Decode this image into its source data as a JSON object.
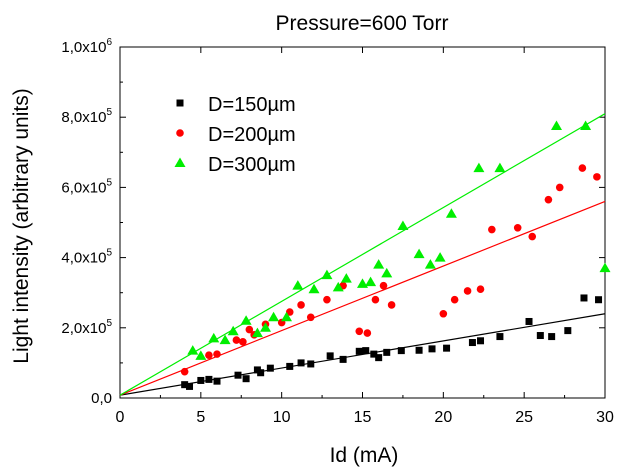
{
  "chart_data": {
    "type": "scatter",
    "title": "Pressure=600 Torr",
    "xlabel": "Id (mA)",
    "ylabel": "Light intensity (arbitrary units)",
    "xlim": [
      0,
      30
    ],
    "ylim": [
      0,
      1000000
    ],
    "x_ticks": [
      0,
      5,
      10,
      15,
      20,
      25,
      30
    ],
    "x_tick_labels": [
      "0",
      "5",
      "10",
      "15",
      "20",
      "25",
      "30"
    ],
    "y_ticks": [
      0,
      200000,
      400000,
      600000,
      800000,
      1000000
    ],
    "y_tick_labels": [
      {
        "mantissa": "0,0",
        "exponent": ""
      },
      {
        "mantissa": "2,0x10",
        "exponent": "5"
      },
      {
        "mantissa": "4,0x10",
        "exponent": "5"
      },
      {
        "mantissa": "6,0x10",
        "exponent": "5"
      },
      {
        "mantissa": "8,0x10",
        "exponent": "5"
      },
      {
        "mantissa": "1,0x10",
        "exponent": "6"
      }
    ],
    "grid": false,
    "legend_position": "top-left",
    "series": [
      {
        "name": "D=150µm",
        "color": "#000000",
        "marker": "square",
        "points": [
          [
            4.0,
            38000
          ],
          [
            4.3,
            33000
          ],
          [
            5.0,
            50000
          ],
          [
            5.5,
            53000
          ],
          [
            6.0,
            48000
          ],
          [
            7.3,
            65000
          ],
          [
            7.8,
            55000
          ],
          [
            8.5,
            80000
          ],
          [
            8.7,
            72000
          ],
          [
            9.3,
            85000
          ],
          [
            10.5,
            90000
          ],
          [
            11.2,
            100000
          ],
          [
            11.8,
            97000
          ],
          [
            13.0,
            120000
          ],
          [
            13.8,
            110000
          ],
          [
            14.8,
            133000
          ],
          [
            15.2,
            135000
          ],
          [
            15.7,
            125000
          ],
          [
            16.0,
            115000
          ],
          [
            16.5,
            130000
          ],
          [
            17.4,
            135000
          ],
          [
            18.5,
            136000
          ],
          [
            19.3,
            140000
          ],
          [
            20.2,
            142000
          ],
          [
            21.8,
            158000
          ],
          [
            22.3,
            163000
          ],
          [
            23.5,
            175000
          ],
          [
            25.3,
            218000
          ],
          [
            26.0,
            178000
          ],
          [
            26.7,
            175000
          ],
          [
            27.7,
            192000
          ],
          [
            28.7,
            285000
          ],
          [
            29.6,
            280000
          ]
        ],
        "fit": [
          [
            0,
            8000
          ],
          [
            30,
            240000
          ]
        ]
      },
      {
        "name": "D=200µm",
        "color": "#ff0000",
        "marker": "circle",
        "points": [
          [
            4.0,
            75000
          ],
          [
            5.5,
            122000
          ],
          [
            6.0,
            125000
          ],
          [
            7.2,
            165000
          ],
          [
            7.6,
            160000
          ],
          [
            8.0,
            195000
          ],
          [
            8.3,
            180000
          ],
          [
            9.0,
            210000
          ],
          [
            10.0,
            215000
          ],
          [
            10.5,
            245000
          ],
          [
            11.2,
            265000
          ],
          [
            11.8,
            230000
          ],
          [
            12.8,
            280000
          ],
          [
            13.8,
            320000
          ],
          [
            14.8,
            190000
          ],
          [
            15.3,
            185000
          ],
          [
            15.8,
            280000
          ],
          [
            16.3,
            320000
          ],
          [
            16.8,
            265000
          ],
          [
            20.0,
            240000
          ],
          [
            20.7,
            280000
          ],
          [
            21.5,
            305000
          ],
          [
            22.3,
            310000
          ],
          [
            23.0,
            480000
          ],
          [
            24.6,
            485000
          ],
          [
            25.5,
            460000
          ],
          [
            26.5,
            565000
          ],
          [
            27.2,
            600000
          ],
          [
            28.6,
            655000
          ],
          [
            29.5,
            630000
          ]
        ],
        "fit": [
          [
            0,
            8000
          ],
          [
            30,
            560000
          ]
        ]
      },
      {
        "name": "D=300µm",
        "color": "#00ee00",
        "marker": "triangle",
        "points": [
          [
            4.5,
            135000
          ],
          [
            5.0,
            120000
          ],
          [
            5.8,
            170000
          ],
          [
            6.5,
            165000
          ],
          [
            7.0,
            190000
          ],
          [
            7.8,
            220000
          ],
          [
            8.5,
            185000
          ],
          [
            9.0,
            200000
          ],
          [
            9.5,
            230000
          ],
          [
            10.3,
            230000
          ],
          [
            11.0,
            320000
          ],
          [
            12.0,
            310000
          ],
          [
            12.8,
            350000
          ],
          [
            13.5,
            315000
          ],
          [
            14.0,
            340000
          ],
          [
            15.0,
            325000
          ],
          [
            15.5,
            330000
          ],
          [
            16.0,
            380000
          ],
          [
            16.5,
            355000
          ],
          [
            17.5,
            490000
          ],
          [
            18.5,
            410000
          ],
          [
            19.2,
            380000
          ],
          [
            19.8,
            400000
          ],
          [
            20.5,
            525000
          ],
          [
            22.2,
            655000
          ],
          [
            23.5,
            655000
          ],
          [
            27.0,
            775000
          ],
          [
            28.8,
            775000
          ],
          [
            30.0,
            370000
          ]
        ],
        "fit": [
          [
            0,
            8000
          ],
          [
            30,
            810000
          ]
        ]
      }
    ]
  }
}
